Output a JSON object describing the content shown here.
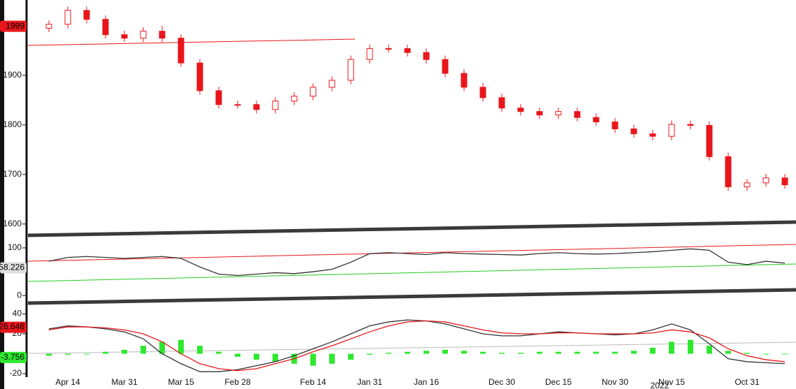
{
  "chart_data": [
    {
      "type": "candlestick",
      "categories": [
        null,
        "Apr 14",
        null,
        null,
        "Mar 31",
        null,
        null,
        "Mar 15",
        null,
        null,
        "Feb 28",
        null,
        null,
        null,
        "Feb 14",
        null,
        null,
        "Jan 31",
        null,
        null,
        "Jan 16",
        null,
        null,
        null,
        "Dec 30",
        null,
        null,
        "Dec 15",
        null,
        null,
        "Nov 30",
        null,
        null,
        "Nov 15",
        null,
        null,
        null,
        "Oct 31",
        null,
        null
      ],
      "open": [
        1995,
        2003,
        2031,
        2013,
        1982,
        1975,
        1989,
        1975,
        1925,
        1869,
        1841,
        1841,
        1831,
        1848,
        1858,
        1876,
        1890,
        1932,
        1954,
        1954,
        1946,
        1932,
        1904,
        1876,
        1855,
        1834,
        1827,
        1820,
        1827,
        1815,
        1806,
        1792,
        1782,
        1777,
        1801,
        1799,
        1736,
        1675,
        1683,
        1693
      ],
      "high": [
        2011,
        2039,
        2039,
        2021,
        1990,
        1997,
        2000,
        1983,
        1933,
        1877,
        1849,
        1849,
        1856,
        1866,
        1884,
        1898,
        1940,
        1962,
        1962,
        1962,
        1954,
        1940,
        1912,
        1884,
        1863,
        1842,
        1835,
        1835,
        1835,
        1823,
        1814,
        1800,
        1790,
        1809,
        1809,
        1807,
        1744,
        1691,
        1701,
        1701
      ],
      "low": [
        1987,
        1995,
        2005,
        1974,
        1967,
        1967,
        1967,
        1917,
        1861,
        1833,
        1833,
        1823,
        1823,
        1840,
        1850,
        1868,
        1882,
        1924,
        1946,
        1938,
        1924,
        1896,
        1868,
        1847,
        1826,
        1819,
        1812,
        1812,
        1807,
        1798,
        1784,
        1774,
        1769,
        1769,
        1791,
        1728,
        1667,
        1667,
        1675,
        1671
      ],
      "close": [
        2003,
        2031,
        2013,
        1982,
        1975,
        1989,
        1975,
        1925,
        1869,
        1841,
        1841,
        1831,
        1848,
        1858,
        1876,
        1890,
        1932,
        1954,
        1954,
        1946,
        1932,
        1904,
        1876,
        1855,
        1834,
        1827,
        1820,
        1827,
        1815,
        1806,
        1792,
        1782,
        1777,
        1801,
        1799,
        1736,
        1675,
        1683,
        1693,
        1679
      ],
      "color": "#e8161b",
      "ylim": [
        1587,
        2052
      ],
      "yticks": [
        1600,
        1700,
        1800,
        1900
      ],
      "last_price": 1999,
      "year_label": "2022"
    },
    {
      "type": "line",
      "series": [
        {
          "color": "#333333",
          "values": [
            72,
            80,
            82,
            80,
            78,
            80,
            82,
            78,
            60,
            45,
            42,
            45,
            48,
            46,
            50,
            55,
            70,
            88,
            90,
            88,
            86,
            90,
            88,
            87,
            86,
            85,
            88,
            90,
            88,
            87,
            88,
            90,
            92,
            95,
            98,
            95,
            70,
            65,
            72,
            68
          ]
        }
      ],
      "ylim": [
        -10,
        119
      ],
      "yticks": [
        0,
        100
      ],
      "last_value": 58.226
    },
    {
      "type": "macd",
      "series": [
        {
          "color": "#333333",
          "values": [
            25,
            28,
            27,
            25,
            22,
            15,
            0,
            -10,
            -18,
            -18,
            -16,
            -12,
            -8,
            -2,
            5,
            12,
            20,
            28,
            32,
            34,
            33,
            30,
            25,
            20,
            18,
            18,
            20,
            22,
            21,
            20,
            19,
            20,
            24,
            30,
            24,
            10,
            -5,
            -8,
            -9,
            -10
          ]
        },
        {
          "color": "#e8161b",
          "values": [
            24,
            27,
            27,
            26,
            24,
            20,
            12,
            0,
            -10,
            -15,
            -17,
            -15,
            -10,
            -5,
            2,
            8,
            15,
            22,
            28,
            32,
            33,
            32,
            28,
            24,
            21,
            20,
            20,
            21,
            21,
            20,
            20,
            20,
            21,
            24,
            22,
            16,
            5,
            -2,
            -6,
            -8
          ]
        }
      ],
      "histogram": {
        "color": "#2ee82e",
        "values": [
          -2,
          -1,
          0,
          2,
          4,
          8,
          12,
          14,
          8,
          2,
          -3,
          -6,
          -8,
          -10,
          -12,
          -10,
          -6,
          -1,
          1,
          2,
          3,
          4,
          3,
          2,
          1,
          1,
          2,
          2,
          2,
          2,
          2,
          3,
          6,
          12,
          14,
          8,
          3,
          1,
          0,
          0
        ]
      },
      "ylim": [
        -23.5,
        46.7
      ],
      "yticks": [
        -20,
        20,
        40
      ],
      "last_values": [
        26.646,
        -3.756
      ]
    }
  ]
}
